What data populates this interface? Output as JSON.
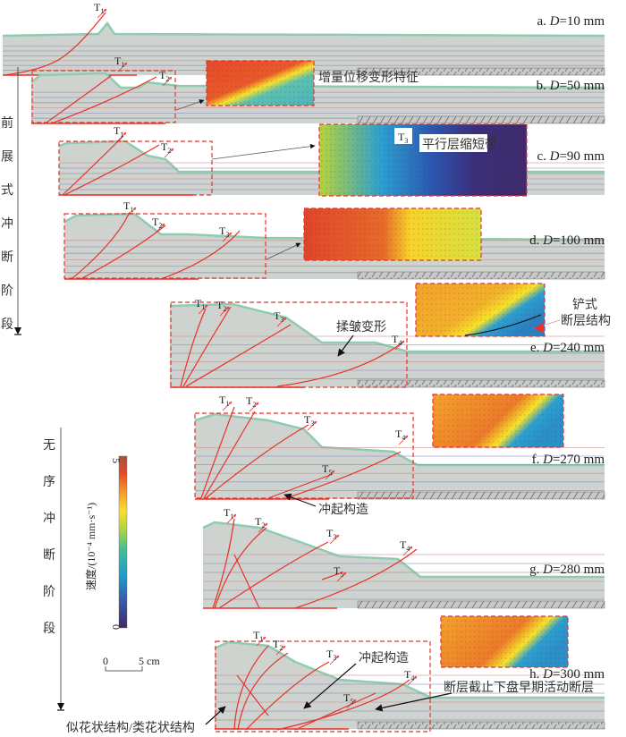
{
  "stages": {
    "forward": {
      "chars": [
        "前",
        "展",
        "式",
        "冲",
        "断",
        "阶",
        "段"
      ]
    },
    "disorder": {
      "chars": [
        "无",
        "序",
        "冲",
        "断",
        "阶",
        "段"
      ]
    }
  },
  "colorbar": {
    "label": "速度/(10⁻⁴ mm·s⁻¹)",
    "max": "5",
    "min": "0",
    "colors": [
      "#3e2a6b",
      "#3b57a8",
      "#1f9bc9",
      "#3ebd9a",
      "#b8d43a",
      "#f7e22a",
      "#f5a12b",
      "#e8482a",
      "#a0553f"
    ]
  },
  "scale_bar": {
    "start": "0",
    "end": "5 cm"
  },
  "panels": [
    {
      "key": "a",
      "prefix": "a. ",
      "var": "D",
      "value": "=10 mm",
      "faults": [
        "1"
      ]
    },
    {
      "key": "b",
      "prefix": "b. ",
      "var": "D",
      "value": "=50 mm",
      "faults": [
        "1",
        "2"
      ]
    },
    {
      "key": "c",
      "prefix": "c. ",
      "var": "D",
      "value": "=90 mm",
      "faults": [
        "1",
        "2"
      ],
      "inset_fault": "3"
    },
    {
      "key": "d",
      "prefix": "d. ",
      "var": "D",
      "value": "=100 mm",
      "faults": [
        "1",
        "2",
        "3"
      ]
    },
    {
      "key": "e",
      "prefix": "e. ",
      "var": "D",
      "value": "=240 mm",
      "faults": [
        "1",
        "2",
        "3",
        "4"
      ]
    },
    {
      "key": "f",
      "prefix": "f. ",
      "var": "D",
      "value": "=270 mm",
      "faults": [
        "1",
        "2",
        "3",
        "4",
        "5"
      ]
    },
    {
      "key": "g",
      "prefix": "g. ",
      "var": "D",
      "value": "=280 mm",
      "faults": [
        "1",
        "2",
        "3",
        "4",
        "5"
      ]
    },
    {
      "key": "h",
      "prefix": "h. ",
      "var": "D",
      "value": "=300 mm",
      "faults": [
        "1",
        "2",
        "3",
        "4",
        "5"
      ]
    }
  ],
  "fault_letter": "T",
  "annotations": {
    "incremental_displacement": "增量位移变形特征",
    "parallel_shortening": "平行层缩短带",
    "listric_fault_1": "铲式",
    "listric_fault_2": "断层结构",
    "folding": "揉皱变形",
    "popup_f": "冲起构造",
    "popup_h": "冲起构造",
    "fault_truncation": "断层截止下盘早期活动断层",
    "flower_structure": "似花状结构/类花状结构"
  },
  "colors": {
    "fault": "#e8312a",
    "box": "#e8312a",
    "arrow": "#111111"
  }
}
